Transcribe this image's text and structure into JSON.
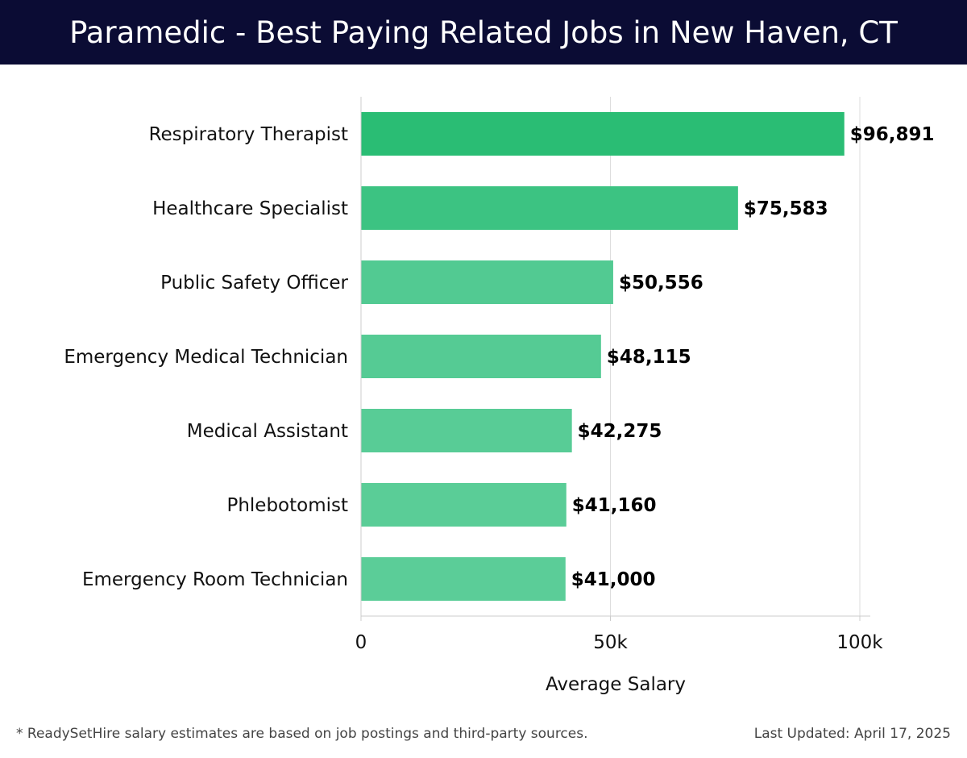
{
  "header": {
    "title": "Paramedic - Best Paying Related Jobs in New Haven, CT"
  },
  "chart_data": {
    "type": "bar",
    "orientation": "horizontal",
    "categories": [
      "Respiratory Therapist",
      "Healthcare Specialist",
      "Public Safety Officer",
      "Emergency Medical Technician",
      "Medical Assistant",
      "Phlebotomist",
      "Emergency Room Technician"
    ],
    "values": [
      96891,
      75583,
      50556,
      48115,
      42275,
      41160,
      41000
    ],
    "value_labels": [
      "$96,891",
      "$75,583",
      "$50,556",
      "$48,115",
      "$42,275",
      "$41,160",
      "$41,000"
    ],
    "bar_colors": [
      "#2abd74",
      "#3cc382",
      "#52ca92",
      "#55cb94",
      "#58cc96",
      "#5acd97",
      "#5bcd98"
    ],
    "title": "",
    "xlabel": "Average Salary",
    "ylabel": "",
    "xlim": [
      0,
      102000
    ],
    "x_ticks": [
      0,
      50000,
      100000
    ],
    "x_tick_labels": [
      "0",
      "50k",
      "100k"
    ],
    "grid": "vertical",
    "legend": "none"
  },
  "footer": {
    "note": "* ReadySetHire salary estimates are based on job postings and third-party sources.",
    "updated": "Last Updated: April 17, 2025"
  }
}
